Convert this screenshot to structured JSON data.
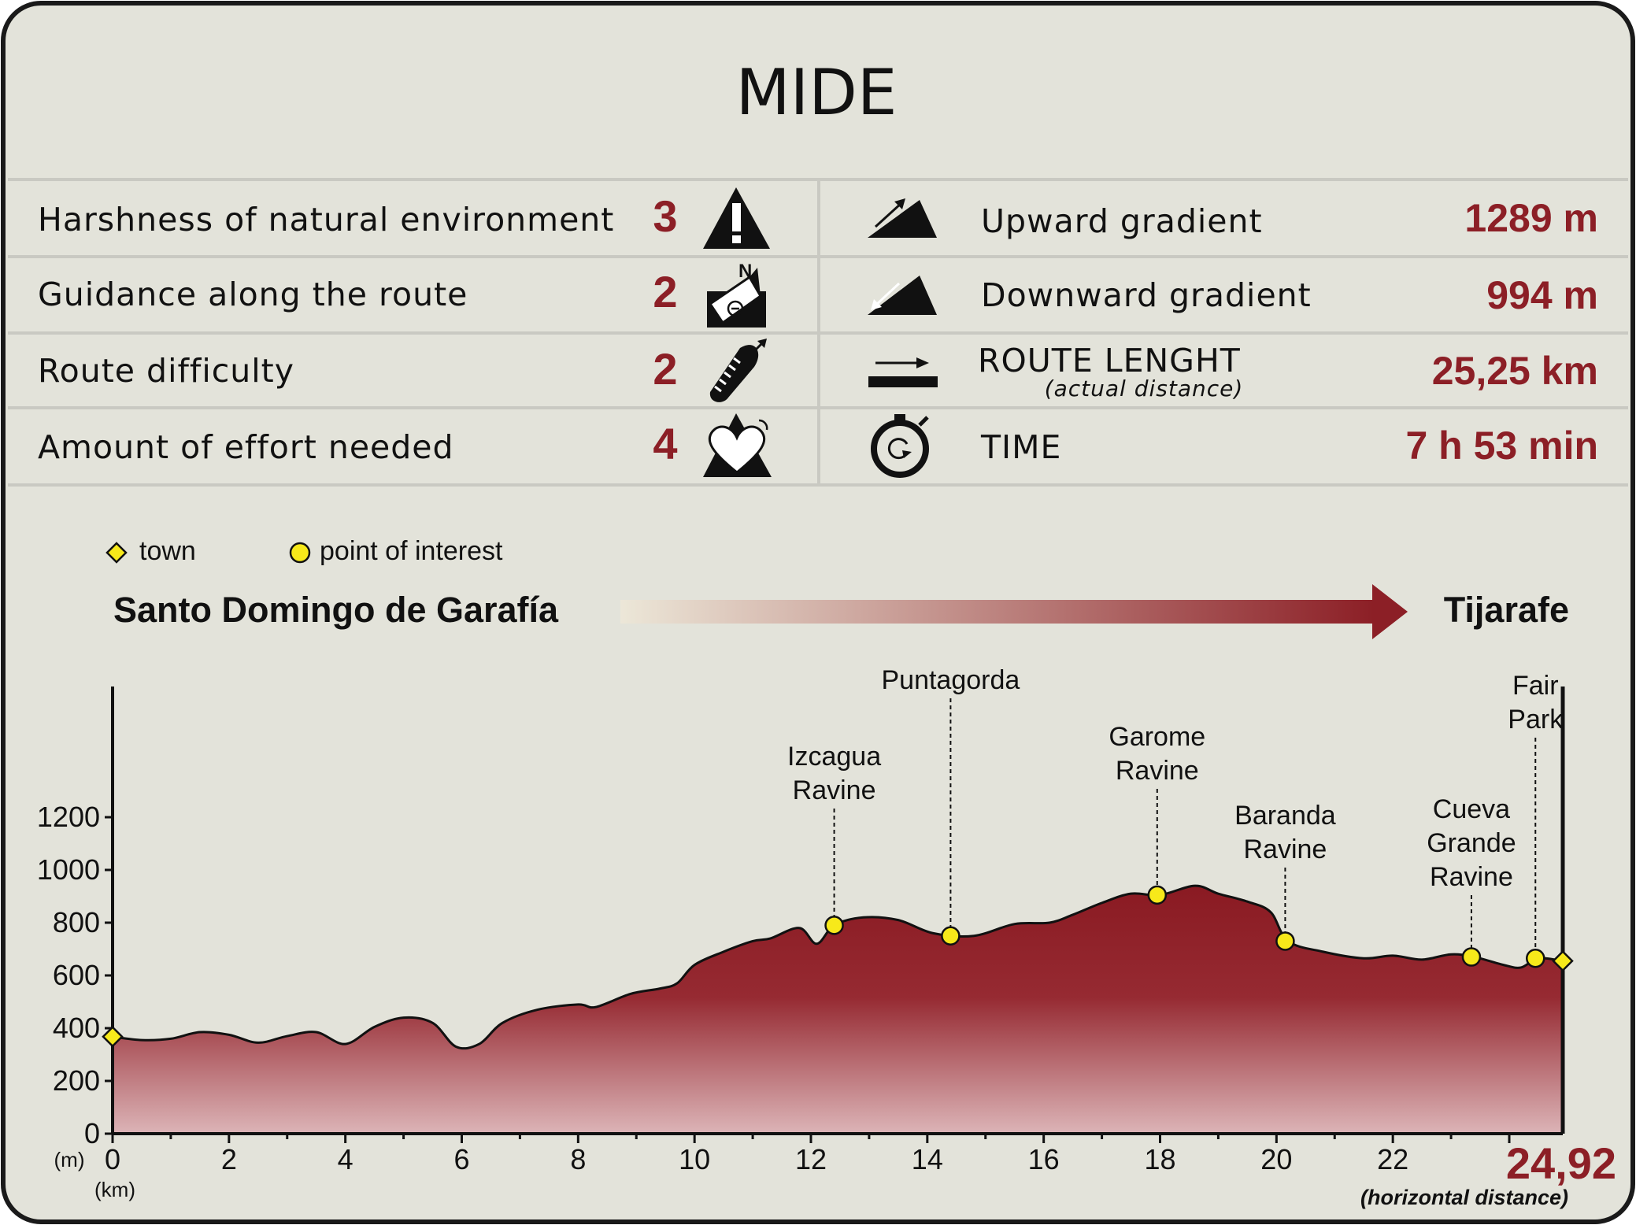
{
  "title": "MIDE",
  "mide_left": [
    {
      "label": "Harshness of natural environment",
      "value": "3",
      "icon": "warning-mountain-icon"
    },
    {
      "label": "Guidance along the route",
      "value": "2",
      "icon": "compass-north-icon"
    },
    {
      "label": "Route difficulty",
      "value": "2",
      "icon": "footprint-icon"
    },
    {
      "label": "Amount of effort needed",
      "value": "4",
      "icon": "heart-mountain-icon"
    }
  ],
  "mide_right": [
    {
      "label": "Upward gradient",
      "sublabel": "",
      "value": "1289 m",
      "icon": "upward-gradient-icon"
    },
    {
      "label": "Downward gradient",
      "sublabel": "",
      "value": "994 m",
      "icon": "downward-gradient-icon"
    },
    {
      "label": "ROUTE LENGHT",
      "sublabel": "(actual distance)",
      "value": "25,25 km",
      "icon": "route-length-arrow-icon"
    },
    {
      "label": "TIME",
      "sublabel": "",
      "value": "7 h 53 min",
      "icon": "stopwatch-icon"
    }
  ],
  "legend": {
    "town": "town",
    "poi": "point of interest"
  },
  "route": {
    "start": "Santo Domingo de Garafía",
    "end": "Tijarafe"
  },
  "colors": {
    "accent": "#8c1f26",
    "marker": "#f7e91a",
    "panel": "#e3e3da",
    "separator": "#c9c9c2"
  },
  "chart_data": {
    "type": "area",
    "ylabel": "(m)",
    "xlabel": "(km)",
    "xlim": [
      0,
      24.92
    ],
    "ylim": [
      0,
      1200
    ],
    "x_ticks": [
      0,
      2,
      4,
      6,
      8,
      10,
      12,
      14,
      16,
      18,
      20,
      22
    ],
    "y_ticks": [
      0,
      200,
      400,
      600,
      800,
      1000,
      1200
    ],
    "end_distance_label": "24,92",
    "end_distance_note": "(horizontal distance)",
    "profile": [
      [
        0,
        368
      ],
      [
        0.5,
        355
      ],
      [
        1.0,
        360
      ],
      [
        1.5,
        385
      ],
      [
        2.0,
        375
      ],
      [
        2.5,
        345
      ],
      [
        3.0,
        370
      ],
      [
        3.5,
        385
      ],
      [
        4.0,
        340
      ],
      [
        4.5,
        405
      ],
      [
        5.0,
        440
      ],
      [
        5.5,
        420
      ],
      [
        5.9,
        330
      ],
      [
        6.3,
        340
      ],
      [
        6.7,
        420
      ],
      [
        7.3,
        470
      ],
      [
        8.0,
        490
      ],
      [
        8.3,
        480
      ],
      [
        8.9,
        530
      ],
      [
        9.4,
        550
      ],
      [
        9.7,
        570
      ],
      [
        10.0,
        640
      ],
      [
        10.5,
        690
      ],
      [
        11.0,
        730
      ],
      [
        11.3,
        740
      ],
      [
        11.8,
        780
      ],
      [
        12.1,
        720
      ],
      [
        12.4,
        790
      ],
      [
        12.9,
        820
      ],
      [
        13.5,
        810
      ],
      [
        14.1,
        760
      ],
      [
        14.8,
        750
      ],
      [
        15.5,
        795
      ],
      [
        16.1,
        800
      ],
      [
        16.5,
        830
      ],
      [
        17.0,
        875
      ],
      [
        17.5,
        910
      ],
      [
        18.0,
        905
      ],
      [
        18.6,
        940
      ],
      [
        19.0,
        910
      ],
      [
        19.5,
        880
      ],
      [
        19.9,
        840
      ],
      [
        20.2,
        730
      ],
      [
        20.8,
        690
      ],
      [
        21.5,
        665
      ],
      [
        22.0,
        675
      ],
      [
        22.5,
        660
      ],
      [
        23.0,
        680
      ],
      [
        23.4,
        670
      ],
      [
        23.9,
        640
      ],
      [
        24.2,
        630
      ],
      [
        24.5,
        665
      ],
      [
        24.92,
        655
      ]
    ],
    "towns": [
      {
        "x": 0,
        "y": 368
      },
      {
        "x": 24.92,
        "y": 655
      }
    ],
    "points_of_interest": [
      {
        "x": 12.4,
        "y": 790,
        "label": [
          "Izcagua",
          "Ravine"
        ]
      },
      {
        "x": 14.4,
        "y": 750,
        "label": [
          "Puntagorda"
        ]
      },
      {
        "x": 17.95,
        "y": 905,
        "label": [
          "Garome",
          "Ravine"
        ]
      },
      {
        "x": 20.15,
        "y": 730,
        "label": [
          "Baranda",
          "Ravine"
        ]
      },
      {
        "x": 23.35,
        "y": 670,
        "label": [
          "Cueva",
          "Grande",
          "Ravine"
        ]
      },
      {
        "x": 24.45,
        "y": 665,
        "label": [
          "Fair",
          "Park"
        ]
      }
    ]
  }
}
